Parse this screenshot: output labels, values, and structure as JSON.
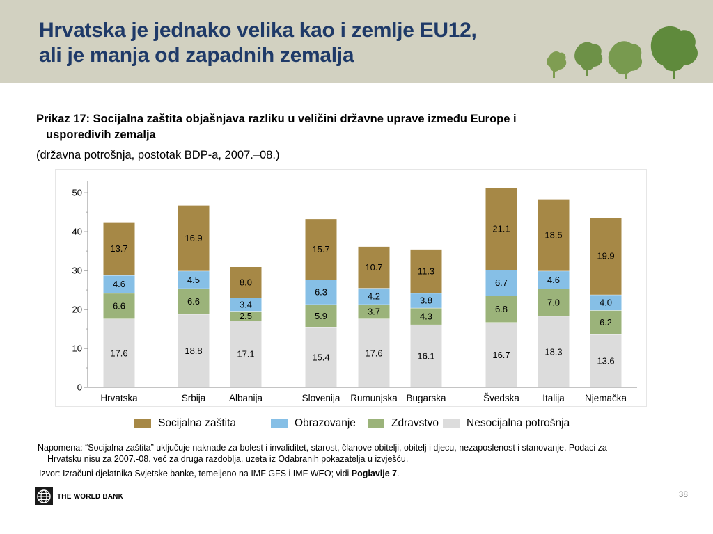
{
  "header": {
    "title_line1": "Hrvatska je jednako velika kao i zemlje EU12,",
    "title_line2": "ali je manja od zapadnih zemalja"
  },
  "figure": {
    "subtitle_line1": "Prikaz 17: Socijalna zaštita objašnjava razliku u veličini državne uprave između Europe i",
    "subtitle_line2": "usporedivih zemalja",
    "units": "(državna potrošnja, postotak BDP-a, 2007.–08.)"
  },
  "chart_data": {
    "type": "bar",
    "stacked": true,
    "categories": [
      "Hrvatska",
      "Srbija",
      "Albanija",
      "Slovenija",
      "Rumunjska",
      "Bugarska",
      "Švedska",
      "Italija",
      "Njemačka"
    ],
    "series": [
      {
        "name": "Nesocijalna potrošnja",
        "color": "#dcdcdc",
        "values": [
          17.6,
          18.8,
          17.1,
          15.4,
          17.6,
          16.1,
          16.7,
          18.3,
          13.6
        ]
      },
      {
        "name": "Zdravstvo",
        "color": "#9bb37a",
        "values": [
          6.6,
          6.6,
          2.5,
          5.9,
          3.7,
          4.3,
          6.8,
          7.0,
          6.2
        ]
      },
      {
        "name": "Obrazovanje",
        "color": "#86bfe6",
        "values": [
          4.6,
          4.5,
          3.4,
          6.3,
          4.2,
          3.8,
          6.7,
          4.6,
          4.0
        ]
      },
      {
        "name": "Socijalna zaštita",
        "color": "#a68846",
        "values": [
          13.7,
          16.9,
          8.0,
          15.7,
          10.7,
          11.3,
          21.1,
          18.5,
          19.9
        ]
      }
    ],
    "legend_order": [
      "Socijalna zaštita",
      "Obrazovanje",
      "Zdravstvo",
      "Nesocijalna potrošnja"
    ],
    "yticks": [
      0,
      10,
      20,
      30,
      40,
      50
    ],
    "ylim": [
      0,
      52
    ],
    "legend_position": "bottom",
    "grid": false
  },
  "notes": {
    "napomena_line1": "Napomena: “Socijalna zaštita” uključuje naknade za bolest i invaliditet, starost, članove obitelji, obitelj i djecu, nezaposlenost i stanovanje. Podaci za",
    "napomena_line2": "Hrvatsku nisu za 2007.-08. već za druga razdoblja, uzeta iz Odabranih pokazatelja u izvješću.",
    "izvor_prefix": "Izvor: Izračuni djelatnika Svjetske banke, temeljeno na IMF GFS i IMF WEO; vidi ",
    "izvor_bold": "Poglavlje 7",
    "izvor_suffix": "."
  },
  "footer": {
    "logo_text": "THE WORLD BANK",
    "page_number": "38"
  }
}
